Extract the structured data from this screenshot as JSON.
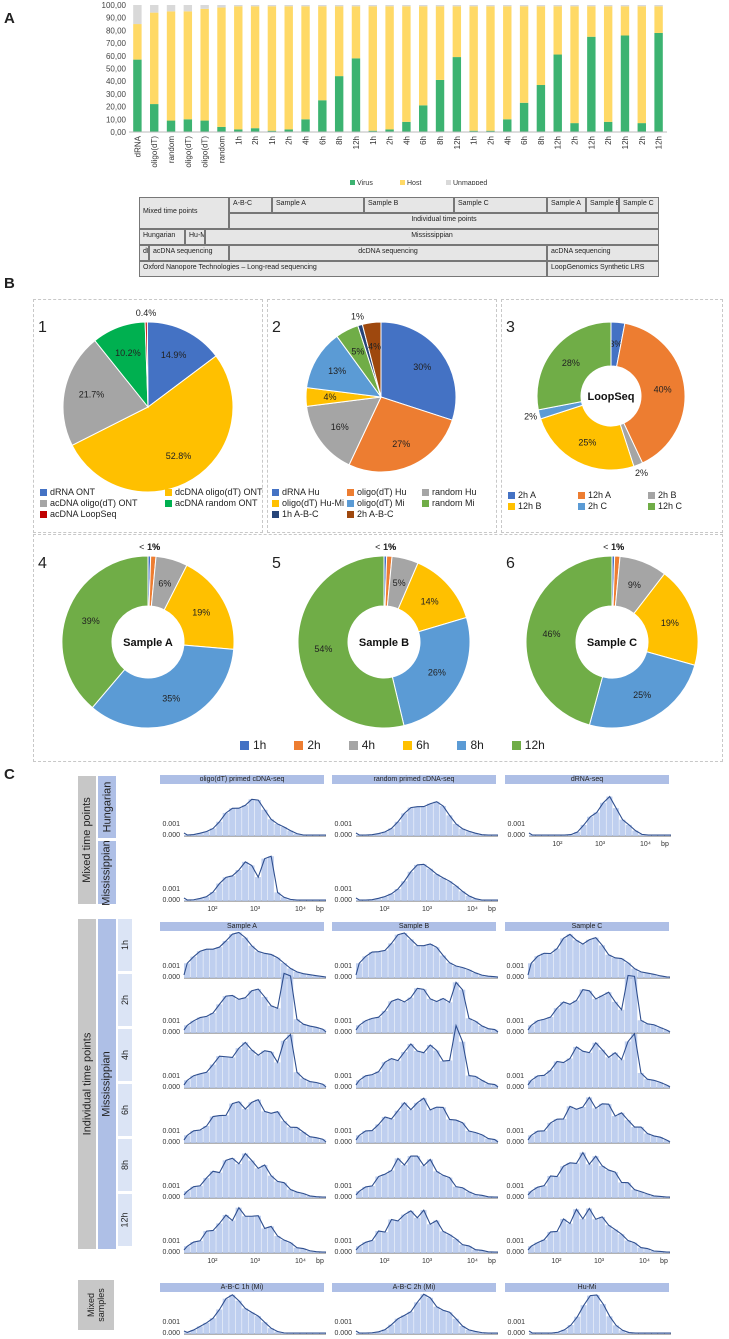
{
  "panel_labels": {
    "A": "A",
    "B": "B",
    "C": "C"
  },
  "colors": {
    "virus": "#3cb371",
    "host": "#ffd966",
    "unmapped": "#d9d9d9"
  },
  "chart_data": [
    {
      "type": "bar",
      "stacked": true,
      "id": "A",
      "yticks": [
        "100,00",
        "90,00",
        "80,00",
        "70,00",
        "60,00",
        "50,00",
        "40,00",
        "30,00",
        "20,00",
        "10,00",
        "0,00"
      ],
      "ylim": [
        0,
        100
      ],
      "categories": [
        "dRNA",
        "oligo(dT)",
        "random",
        "oligo(dT)",
        "oligo(dT)",
        "random",
        "1h",
        "2h",
        "1h",
        "2h",
        "4h",
        "6h",
        "8h",
        "12h",
        "1h",
        "2h",
        "4h",
        "6h",
        "8h",
        "12h",
        "1h",
        "2h",
        "4h",
        "6h",
        "8h",
        "12h",
        "2h",
        "12h",
        "2h",
        "12h",
        "2h",
        "12h"
      ],
      "series": [
        {
          "name": "Virus",
          "values": [
            57,
            22,
            9,
            10,
            9,
            4,
            2,
            3,
            1,
            2,
            10,
            25,
            44,
            58,
            1,
            2,
            8,
            21,
            41,
            59,
            1,
            1,
            10,
            23,
            37,
            61,
            7,
            75,
            8,
            76,
            7,
            78
          ]
        },
        {
          "name": "Host",
          "values": [
            28,
            72,
            86,
            85,
            88,
            94,
            97,
            96,
            98,
            97,
            89,
            74,
            55,
            41,
            98,
            97,
            91,
            78,
            58,
            40,
            98,
            98,
            89,
            76,
            62,
            38,
            92,
            24,
            91,
            23,
            92,
            21
          ]
        },
        {
          "name": "Unmapped",
          "values": [
            15,
            6,
            5,
            5,
            3,
            2,
            1,
            1,
            1,
            1,
            1,
            1,
            1,
            1,
            1,
            1,
            1,
            1,
            1,
            1,
            1,
            1,
            1,
            1,
            1,
            1,
            1,
            1,
            1,
            1,
            1,
            1
          ]
        }
      ],
      "legend": [
        "Virus",
        "Host",
        "Unmapped"
      ]
    },
    {
      "type": "pie",
      "id": "B1",
      "number": "1",
      "slices": [
        {
          "label": "dRNA ONT",
          "value": 14.9,
          "text": "14.9%",
          "color": "#4472c4"
        },
        {
          "label": "dcDNA oligo(dT) ONT",
          "value": 52.8,
          "text": "52.8%",
          "color": "#ffc000"
        },
        {
          "label": "acDNA oligo(dT) ONT",
          "value": 21.7,
          "text": "21.7%",
          "color": "#a5a5a5"
        },
        {
          "label": "acDNA random ONT",
          "value": 10.2,
          "text": "10.2%",
          "color": "#00b050"
        },
        {
          "label": "acDNA LoopSeq",
          "value": 0.4,
          "text": "0.4%",
          "color": "#c00000"
        }
      ]
    },
    {
      "type": "pie",
      "id": "B2",
      "number": "2",
      "slices": [
        {
          "label": "dRNA Hu",
          "value": 30,
          "text": "30%",
          "color": "#4472c4"
        },
        {
          "label": "oligo(dT) Hu",
          "value": 27,
          "text": "27%",
          "color": "#ed7d31"
        },
        {
          "label": "random Hu",
          "value": 16,
          "text": "16%",
          "color": "#a5a5a5"
        },
        {
          "label": "oligo(dT) Hu-Mi",
          "value": 4,
          "text": "4%",
          "color": "#ffc000"
        },
        {
          "label": "oligo(dT) Mi",
          "value": 13,
          "text": "13%",
          "color": "#5b9bd5"
        },
        {
          "label": "random Mi",
          "value": 5,
          "text": "5%",
          "color": "#70ad47"
        },
        {
          "label": "1h A-B-C",
          "value": 1,
          "text": "1%",
          "color": "#264478"
        },
        {
          "label": "2h A-B-C",
          "value": 4,
          "text": "4%",
          "color": "#9e480e"
        }
      ]
    },
    {
      "type": "donut",
      "id": "B3",
      "number": "3",
      "center": "LoopSeq",
      "slices": [
        {
          "label": "2h A",
          "value": 3,
          "text": "3%",
          "color": "#4472c4"
        },
        {
          "label": "12h A",
          "value": 40,
          "text": "40%",
          "color": "#ed7d31"
        },
        {
          "label": "2h B",
          "value": 2,
          "text": "2%",
          "color": "#a5a5a5"
        },
        {
          "label": "12h B",
          "value": 25,
          "text": "25%",
          "color": "#ffc000"
        },
        {
          "label": "2h C",
          "value": 2,
          "text": "2%",
          "color": "#5b9bd5"
        },
        {
          "label": "12h C",
          "value": 28,
          "text": "28%",
          "color": "#70ad47"
        }
      ]
    },
    {
      "type": "donut",
      "id": "B4",
      "number": "4",
      "center": "Sample A",
      "slices": [
        {
          "label": "1h",
          "value": 0.5,
          "text": "< 1%",
          "color": "#4472c4"
        },
        {
          "label": "2h",
          "value": 1,
          "text": "1%",
          "color": "#ed7d31"
        },
        {
          "label": "4h",
          "value": 6,
          "text": "6%",
          "color": "#a5a5a5"
        },
        {
          "label": "6h",
          "value": 19,
          "text": "19%",
          "color": "#ffc000"
        },
        {
          "label": "8h",
          "value": 35,
          "text": "35%",
          "color": "#5b9bd5"
        },
        {
          "label": "12h",
          "value": 39,
          "text": "39%",
          "color": "#70ad47"
        }
      ]
    },
    {
      "type": "donut",
      "id": "B5",
      "number": "5",
      "center": "Sample B",
      "slices": [
        {
          "label": "1h",
          "value": 0.5,
          "text": "< 1%",
          "color": "#4472c4"
        },
        {
          "label": "2h",
          "value": 1,
          "text": "1%",
          "color": "#ed7d31"
        },
        {
          "label": "4h",
          "value": 5,
          "text": "5%",
          "color": "#a5a5a5"
        },
        {
          "label": "6h",
          "value": 14,
          "text": "14%",
          "color": "#ffc000"
        },
        {
          "label": "8h",
          "value": 26,
          "text": "26%",
          "color": "#5b9bd5"
        },
        {
          "label": "12h",
          "value": 54,
          "text": "54%",
          "color": "#70ad47"
        }
      ]
    },
    {
      "type": "donut",
      "id": "B6",
      "number": "6",
      "center": "Sample C",
      "slices": [
        {
          "label": "1h",
          "value": 0.5,
          "text": "< 1%",
          "color": "#4472c4"
        },
        {
          "label": "2h",
          "value": 1,
          "text": "1%",
          "color": "#ed7d31"
        },
        {
          "label": "4h",
          "value": 9,
          "text": "9%",
          "color": "#a5a5a5"
        },
        {
          "label": "6h",
          "value": 19,
          "text": "19%",
          "color": "#ffc000"
        },
        {
          "label": "8h",
          "value": 25,
          "text": "25%",
          "color": "#5b9bd5"
        },
        {
          "label": "12h",
          "value": 46,
          "text": "46%",
          "color": "#70ad47"
        }
      ]
    }
  ],
  "design_table": {
    "rows": [
      [
        "Mixed time points",
        "A-B-C",
        "Sample A",
        "Sample B",
        "Sample C",
        "Sample A",
        "Sample B",
        "Sample C"
      ],
      [
        "Individual time points"
      ],
      [
        "Hungarian",
        "Hu-Mi",
        "Mississippian"
      ],
      [
        "dRNA",
        "acDNA sequencing",
        "dcDNA sequencing",
        "acDNA sequencing"
      ],
      [
        "Oxford Nanopore Technologies – Long-read sequencing",
        "LoopGenomics Synthetic LRS"
      ]
    ]
  },
  "shared_legend": [
    "1h",
    "2h",
    "4h",
    "6h",
    "8h",
    "12h"
  ],
  "panelC": {
    "left_labels": {
      "mixed": "Mixed time points",
      "hungarian": "Hungarian",
      "mississippian": "Mississippian",
      "individual": "Individual time points",
      "mississippian2": "Mississippian",
      "mixed_samples": "Mixed samples"
    },
    "time_labels": [
      "1h",
      "2h",
      "4h",
      "6h",
      "8h",
      "12h"
    ],
    "headers_top": [
      "oligo(dT) primed cDNA-seq",
      "random primed cDNA-seq",
      "dRNA-seq"
    ],
    "headers_mid": [
      "Sample A",
      "Sample B",
      "Sample C"
    ],
    "headers_bot": [
      "A-B-C 1h (Mi)",
      "A-B-C 2h (Mi)",
      "Hu-Mi"
    ],
    "yticks": [
      "0.001",
      "0.000"
    ],
    "xticks": [
      "10²",
      "10³",
      "10⁴",
      "bp"
    ]
  }
}
